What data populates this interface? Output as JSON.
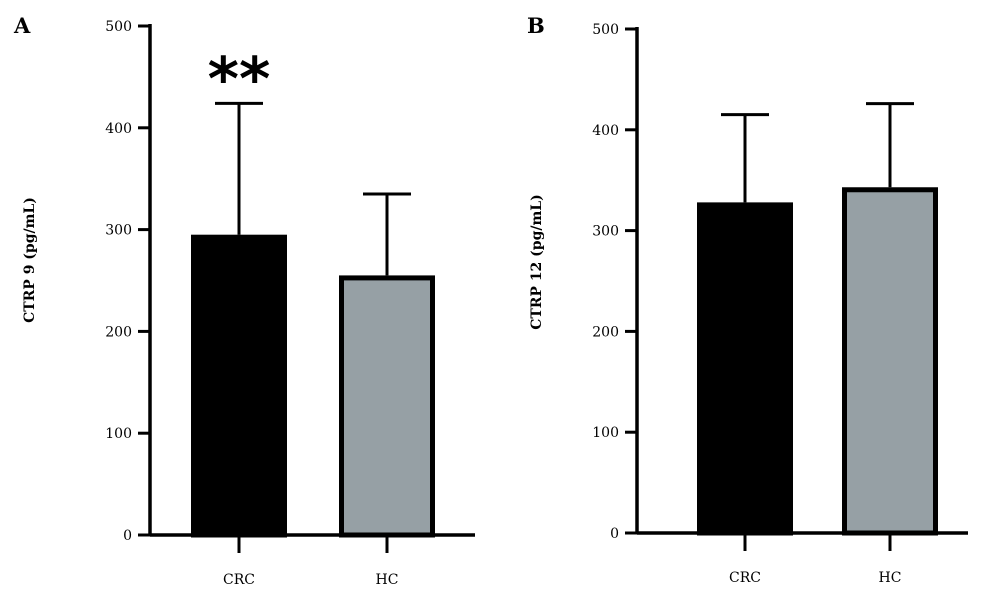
{
  "colors": {
    "crc": "#000000",
    "hc": "#96a0a5",
    "axis": "#000000"
  },
  "chart_data": [
    {
      "type": "bar",
      "panel_label": "A",
      "categories": [
        "CRC",
        "HC"
      ],
      "values": [
        295,
        255
      ],
      "errors": [
        129,
        80
      ],
      "ylabel": "CTRP 9 (pg/mL)",
      "ylim": [
        0,
        500
      ],
      "yticks": [
        "0",
        "100",
        "200",
        "300",
        "400",
        "500"
      ],
      "annotation": {
        "text": "**",
        "category": "CRC"
      },
      "grid": false
    },
    {
      "type": "bar",
      "panel_label": "B",
      "categories": [
        "CRC",
        "HC"
      ],
      "values": [
        328,
        343
      ],
      "errors": [
        87,
        83
      ],
      "ylabel": "CTRP 12 (pg/mL)",
      "ylim": [
        0,
        500
      ],
      "yticks": [
        "0",
        "100",
        "200",
        "300",
        "400",
        "500"
      ],
      "grid": false
    }
  ]
}
